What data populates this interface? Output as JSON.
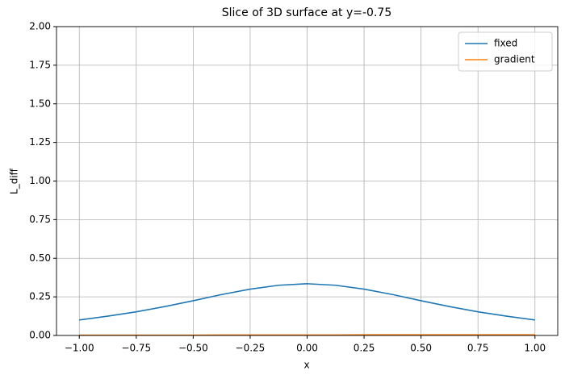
{
  "chart_data": {
    "type": "line",
    "title": "Slice of 3D surface at y=-0.75",
    "x_label": "x",
    "y_label": "L_diff",
    "x": [
      -1,
      -0.875,
      -0.75,
      -0.625,
      -0.5,
      -0.375,
      -0.25,
      -0.125,
      0,
      0.125,
      0.25,
      0.375,
      0.5,
      0.625,
      0.75,
      0.875,
      1
    ],
    "series": [
      {
        "name": "fixed",
        "color": "#1f77b4",
        "values": [
          0.1,
          0.125,
          0.153,
          0.187,
          0.225,
          0.265,
          0.3,
          0.325,
          0.335,
          0.325,
          0.3,
          0.265,
          0.225,
          0.187,
          0.153,
          0.125,
          0.1
        ]
      },
      {
        "name": "gradient",
        "color": "#ff7f0e",
        "values": [
          0.002,
          0.002,
          0.002,
          0.002,
          0.002,
          0.003,
          0.003,
          0.003,
          0.003,
          0.003,
          0.004,
          0.004,
          0.004,
          0.004,
          0.004,
          0.004,
          0.004
        ]
      }
    ],
    "xlim": [
      -1.1,
      1.1
    ],
    "xticks": [
      {
        "value": -1,
        "label": "−1.00"
      },
      {
        "value": -0.75,
        "label": "−0.75"
      },
      {
        "value": -0.5,
        "label": "−0.50"
      },
      {
        "value": -0.25,
        "label": "−0.25"
      },
      {
        "value": 0,
        "label": "0.00"
      },
      {
        "value": 0.25,
        "label": "0.25"
      },
      {
        "value": 0.5,
        "label": "0.50"
      },
      {
        "value": 0.75,
        "label": "0.75"
      },
      {
        "value": 1,
        "label": "1.00"
      }
    ],
    "ylim": [
      0,
      2
    ],
    "yticks": [
      {
        "value": 0,
        "label": "0.00"
      },
      {
        "value": 0.25,
        "label": "0.25"
      },
      {
        "value": 0.5,
        "label": "0.50"
      },
      {
        "value": 0.75,
        "label": "0.75"
      },
      {
        "value": 1,
        "label": "1.00"
      },
      {
        "value": 1.25,
        "label": "1.25"
      },
      {
        "value": 1.5,
        "label": "1.50"
      },
      {
        "value": 1.75,
        "label": "1.75"
      },
      {
        "value": 2,
        "label": "2.00"
      }
    ],
    "grid": true,
    "legend": "upper right"
  }
}
